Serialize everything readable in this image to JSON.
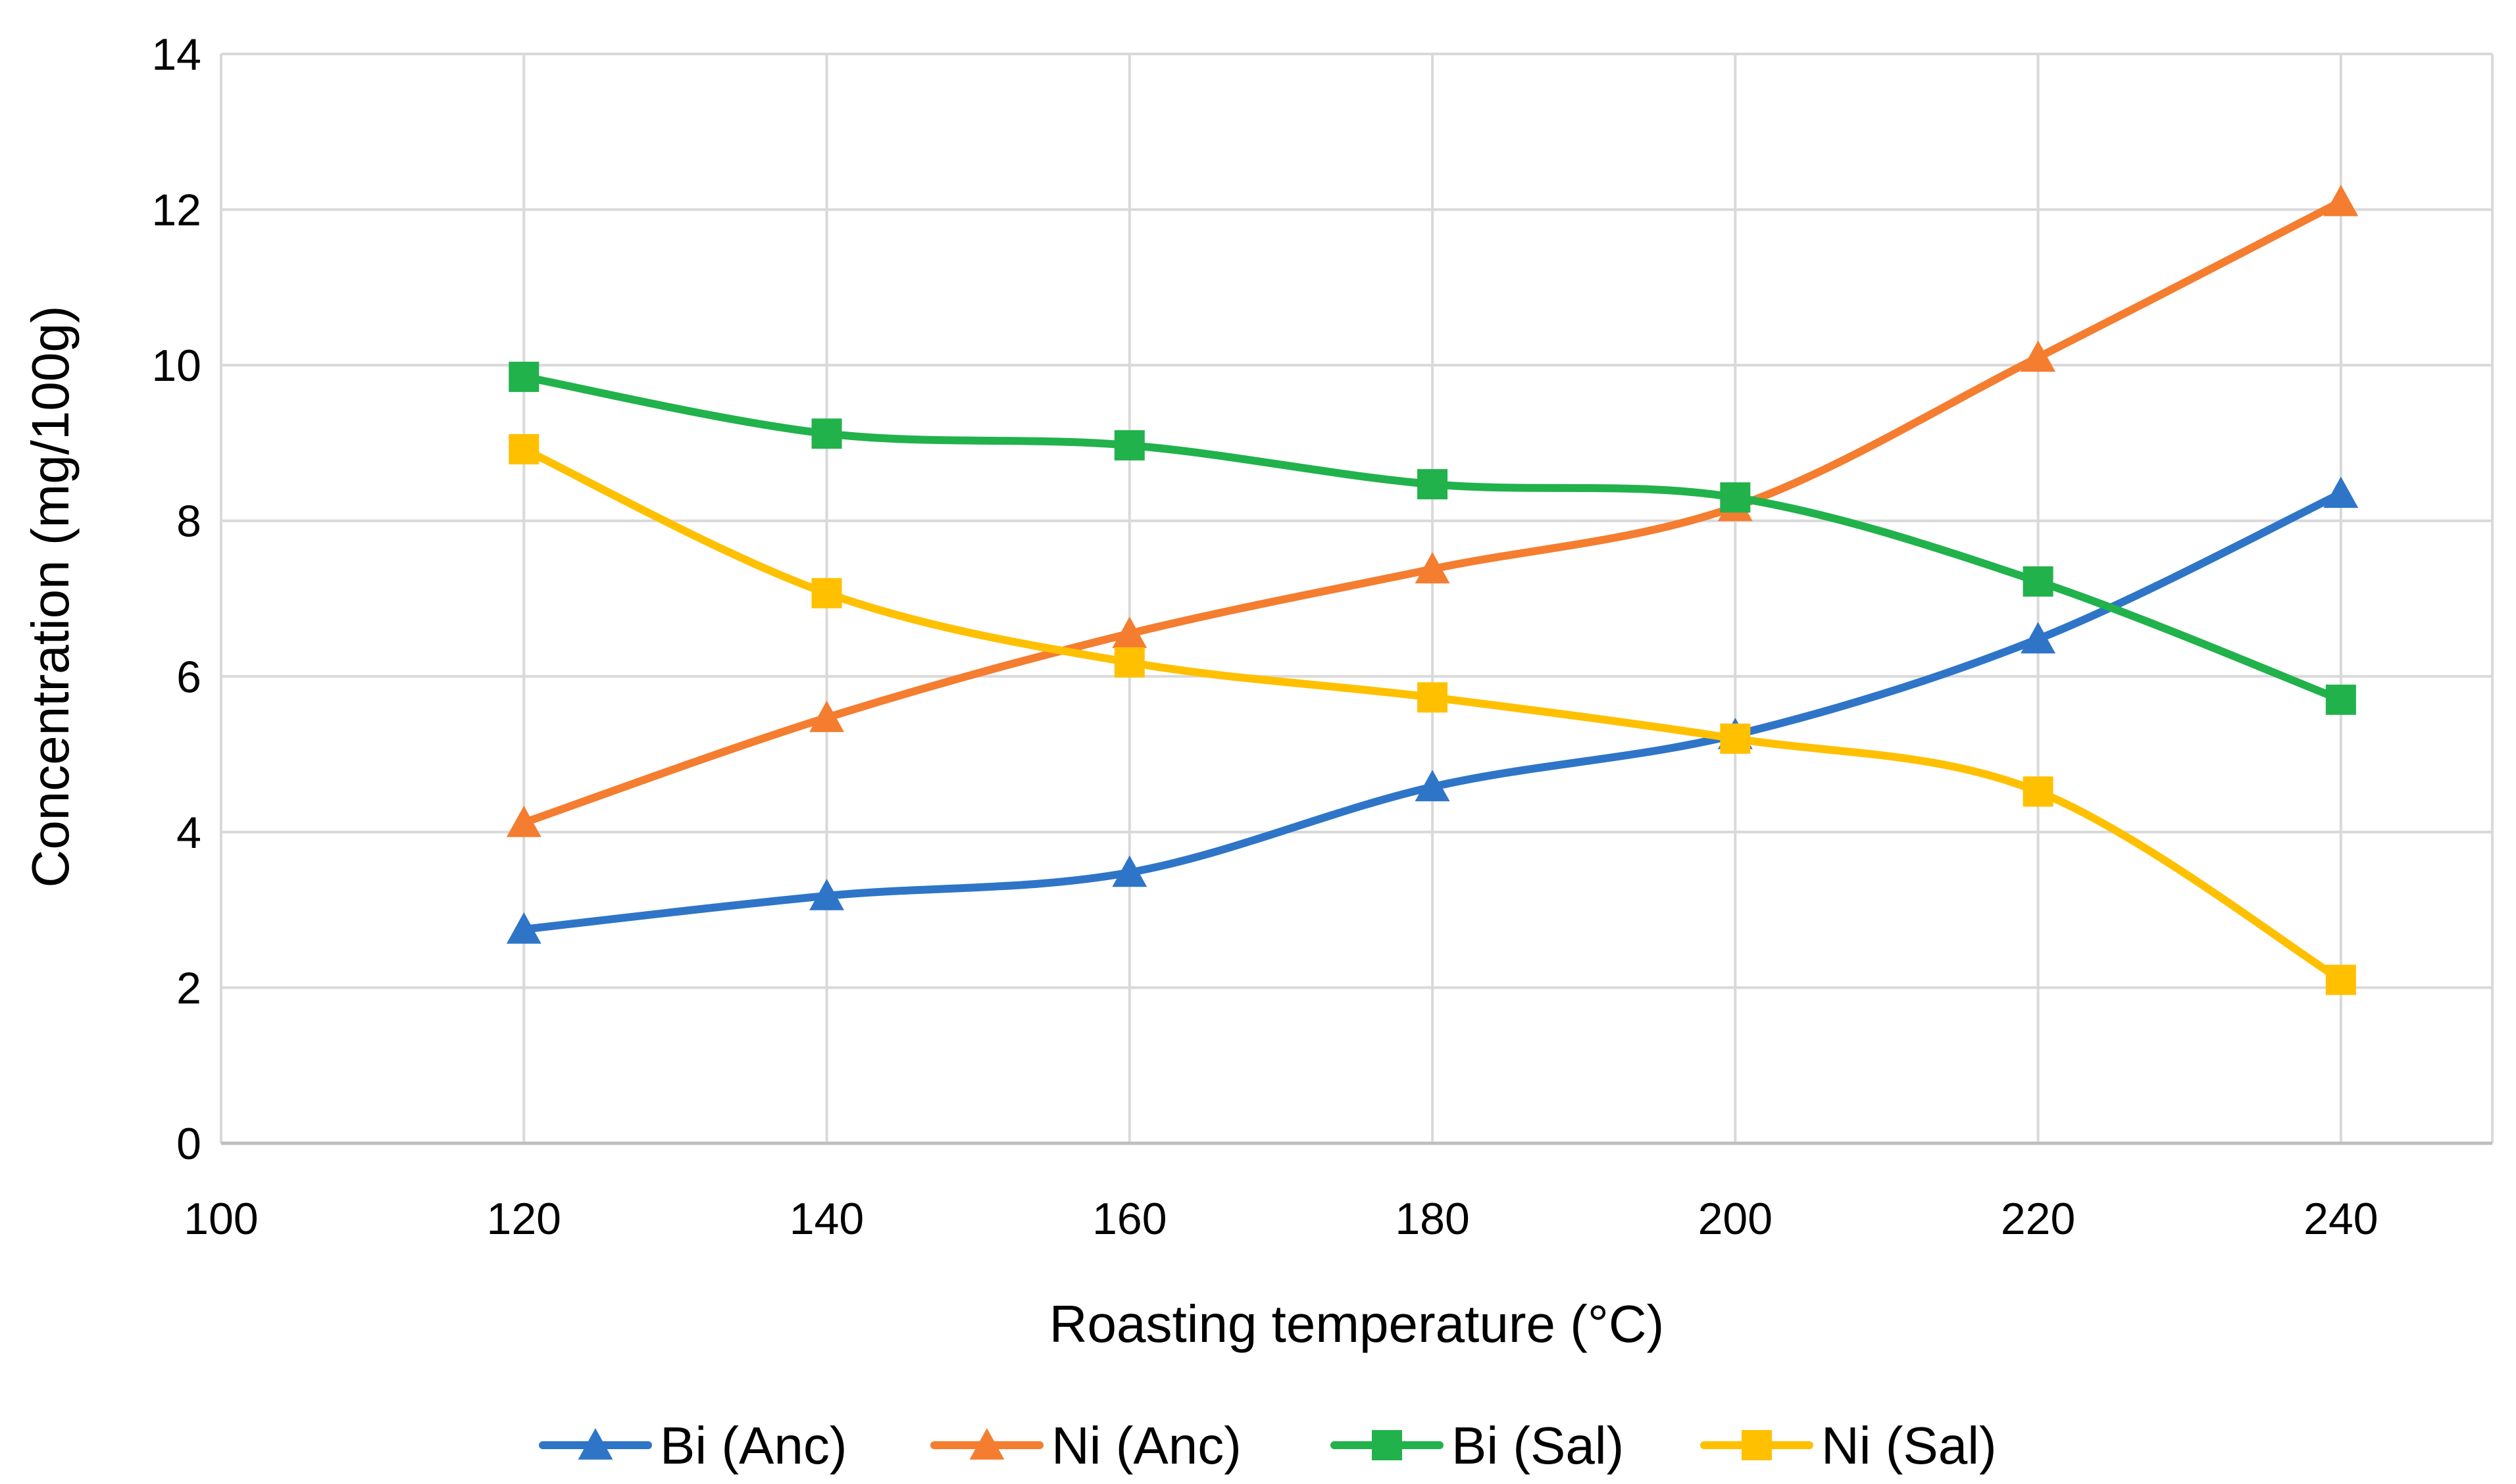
{
  "chart_data": {
    "type": "line",
    "title": "",
    "xlabel": "Roasting temperature (°C)",
    "ylabel": "Concentration (mg/100g)",
    "xlim": [
      100,
      250
    ],
    "ylim": [
      0,
      14
    ],
    "x_ticks": [
      100,
      120,
      140,
      160,
      180,
      200,
      220,
      240
    ],
    "y_ticks": [
      0,
      2,
      4,
      6,
      8,
      10,
      12,
      14
    ],
    "grid": true,
    "legend_position": "bottom",
    "x": [
      120,
      140,
      160,
      180,
      200,
      220,
      240
    ],
    "series": [
      {
        "name": "Bi (Anc)",
        "marker": "triangle",
        "color": "#2E75C8",
        "values": [
          2.75,
          3.18,
          3.48,
          4.58,
          5.25,
          6.48,
          8.35
        ]
      },
      {
        "name": "Ni (Anc)",
        "marker": "triangle",
        "color": "#F47D30",
        "values": [
          4.12,
          5.47,
          6.55,
          7.38,
          8.18,
          10.1,
          12.1
        ]
      },
      {
        "name": "Bi (Sal)",
        "marker": "square",
        "color": "#21B24B",
        "values": [
          9.85,
          9.12,
          8.97,
          8.47,
          8.3,
          7.22,
          5.7
        ]
      },
      {
        "name": "Ni (Sal)",
        "marker": "square",
        "color": "#FFC000",
        "values": [
          8.92,
          7.07,
          6.18,
          5.73,
          5.2,
          4.52,
          2.1
        ]
      }
    ]
  }
}
